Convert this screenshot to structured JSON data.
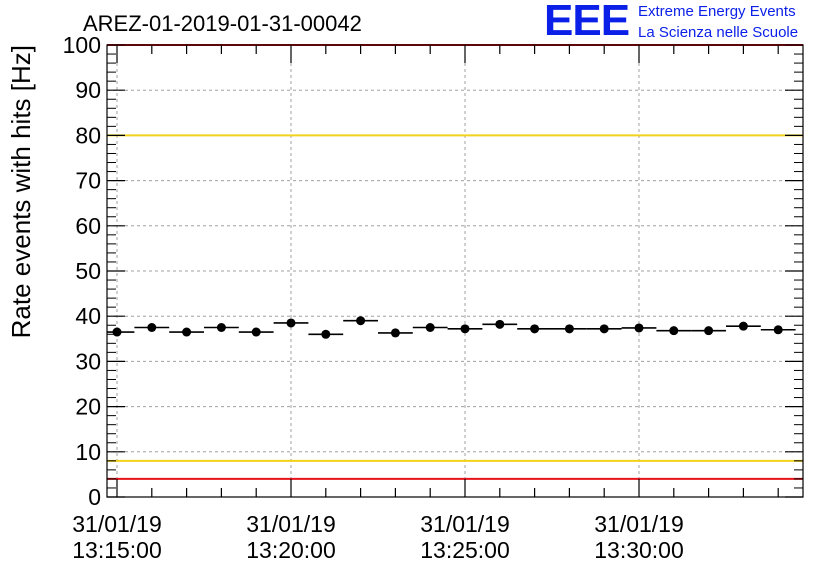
{
  "header": {
    "run_title": "AREZ-01-2019-01-31-00042",
    "logo_mark": "EEE",
    "logo_line1": "Extreme Energy Events",
    "logo_line2": "La Scienza nelle Scuole",
    "logo_color": "#0a1fe8"
  },
  "chart_data": {
    "type": "scatter",
    "title": "AREZ-01-2019-01-31-00042",
    "xlabel": "",
    "ylabel": "Rate events with hits [Hz]",
    "x_unit": "minutes after 31/01/19 13:15:00",
    "xlim": [
      0,
      20
    ],
    "ylim": [
      0,
      100
    ],
    "y_ticks": [
      0,
      10,
      20,
      30,
      40,
      50,
      60,
      70,
      80,
      90,
      100
    ],
    "x_tick_labels": [
      {
        "x": 0,
        "date": "31/01/19",
        "time": "13:15:00"
      },
      {
        "x": 5,
        "date": "31/01/19",
        "time": "13:20:00"
      },
      {
        "x": 10,
        "date": "31/01/19",
        "time": "13:25:00"
      },
      {
        "x": 15,
        "date": "31/01/19",
        "time": "13:30:00"
      }
    ],
    "grid": true,
    "bin_width_min": 1,
    "series": [
      {
        "marker": "circle",
        "color": "#000000",
        "x": [
          0,
          1,
          2,
          3,
          4,
          5,
          6,
          7,
          8,
          9,
          10,
          11,
          12,
          13,
          14,
          15,
          16,
          17,
          18,
          19
        ],
        "y": [
          36.5,
          37.5,
          36.5,
          37.5,
          36.5,
          38.5,
          36,
          39,
          36.3,
          37.5,
          37.2,
          38.2,
          37.2,
          37.2,
          37.2,
          37.4,
          36.8,
          36.8,
          37.8,
          37
        ]
      }
    ],
    "reference_lines": [
      {
        "y": 100,
        "color": "#e8121a"
      },
      {
        "y": 80,
        "color": "#f2d21b"
      },
      {
        "y": 8,
        "color": "#f2d21b"
      },
      {
        "y": 4,
        "color": "#e8121a"
      }
    ]
  }
}
